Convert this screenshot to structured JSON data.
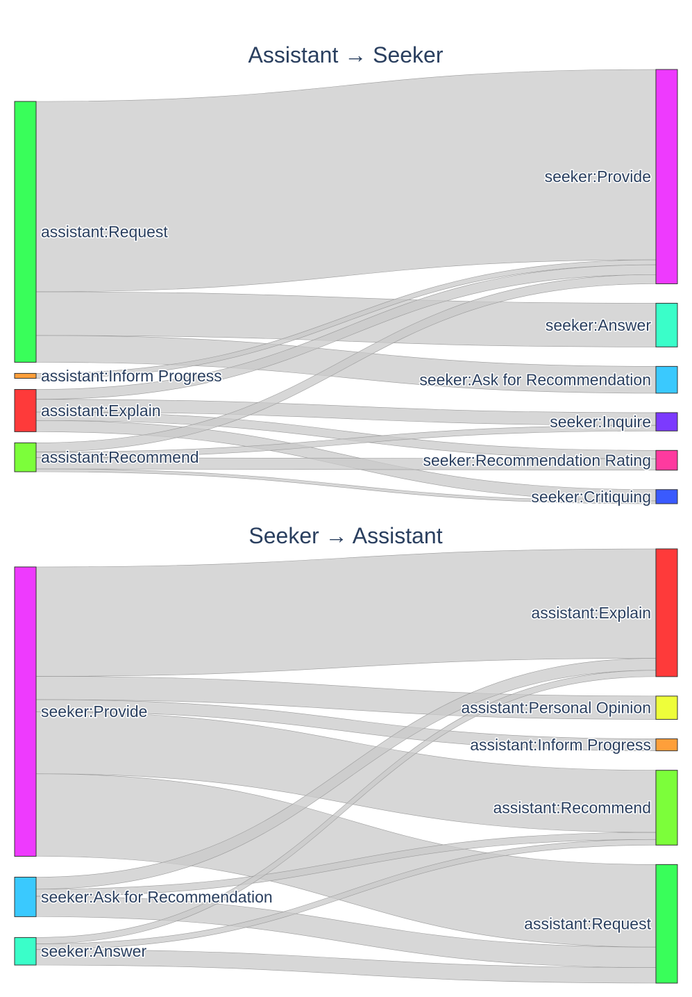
{
  "diagrams": [
    {
      "title": "Assistant → Seeker",
      "sources": [
        {
          "id": "a_req",
          "label": "assistant:Request",
          "color": "#39fe5a"
        },
        {
          "id": "a_inf",
          "label": "assistant:Inform Progress",
          "color": "#fe9f3a"
        },
        {
          "id": "a_exp",
          "label": "assistant:Explain",
          "color": "#fe3a3a"
        },
        {
          "id": "a_rec",
          "label": "assistant:Recommend",
          "color": "#7cfe3a"
        }
      ],
      "targets": [
        {
          "id": "s_pro",
          "label": "seeker:Provide",
          "color": "#ee3afe"
        },
        {
          "id": "s_ans",
          "label": "seeker:Answer",
          "color": "#3afec9"
        },
        {
          "id": "s_ask",
          "label": "seeker:Ask for Recommendation",
          "color": "#3ac9fe"
        },
        {
          "id": "s_inq",
          "label": "seeker:Inquire",
          "color": "#7c3afe"
        },
        {
          "id": "s_rat",
          "label": "seeker:Recommendation Rating",
          "color": "#fe3a9f"
        },
        {
          "id": "s_cri",
          "label": "seeker:Critiquing",
          "color": "#3a5afe"
        }
      ],
      "links": [
        {
          "source": "a_req",
          "target": "s_pro",
          "value": 270
        },
        {
          "source": "a_req",
          "target": "s_ans",
          "value": 62
        },
        {
          "source": "a_req",
          "target": "s_ask",
          "value": 38
        },
        {
          "source": "a_inf",
          "target": "s_pro",
          "value": 7
        },
        {
          "source": "a_exp",
          "target": "s_pro",
          "value": 14
        },
        {
          "source": "a_exp",
          "target": "s_inq",
          "value": 18
        },
        {
          "source": "a_exp",
          "target": "s_rat",
          "value": 12
        },
        {
          "source": "a_exp",
          "target": "s_cri",
          "value": 16
        },
        {
          "source": "a_rec",
          "target": "s_pro",
          "value": 13
        },
        {
          "source": "a_rec",
          "target": "s_inq",
          "value": 8
        },
        {
          "source": "a_rec",
          "target": "s_rat",
          "value": 16
        },
        {
          "source": "a_rec",
          "target": "s_cri",
          "value": 4
        }
      ]
    },
    {
      "title": "Seeker → Assistant",
      "sources": [
        {
          "id": "s_pro",
          "label": "seeker:Provide",
          "color": "#ee3afe"
        },
        {
          "id": "s_ask",
          "label": "seeker:Ask for Recommendation",
          "color": "#3ac9fe"
        },
        {
          "id": "s_ans",
          "label": "seeker:Answer",
          "color": "#3afec9"
        }
      ],
      "targets": [
        {
          "id": "a_exp",
          "label": "assistant:Explain",
          "color": "#fe3a3a"
        },
        {
          "id": "a_per",
          "label": "assistant:Personal Opinion",
          "color": "#eefe3a"
        },
        {
          "id": "a_inf",
          "label": "assistant:Inform Progress",
          "color": "#fe9f3a"
        },
        {
          "id": "a_rec",
          "label": "assistant:Recommend",
          "color": "#7cfe3a"
        },
        {
          "id": "a_req",
          "label": "assistant:Request",
          "color": "#39fe5a"
        }
      ],
      "links": [
        {
          "source": "s_pro",
          "target": "a_exp",
          "value": 155
        },
        {
          "source": "s_pro",
          "target": "a_per",
          "value": 33
        },
        {
          "source": "s_pro",
          "target": "a_inf",
          "value": 17
        },
        {
          "source": "s_pro",
          "target": "a_rec",
          "value": 88
        },
        {
          "source": "s_pro",
          "target": "a_req",
          "value": 117
        },
        {
          "source": "s_ask",
          "target": "a_exp",
          "value": 17
        },
        {
          "source": "s_ask",
          "target": "a_rec",
          "value": 10
        },
        {
          "source": "s_ask",
          "target": "a_req",
          "value": 29
        },
        {
          "source": "s_ans",
          "target": "a_exp",
          "value": 9
        },
        {
          "source": "s_ans",
          "target": "a_rec",
          "value": 8
        },
        {
          "source": "s_ans",
          "target": "a_req",
          "value": 22
        }
      ]
    }
  ]
}
